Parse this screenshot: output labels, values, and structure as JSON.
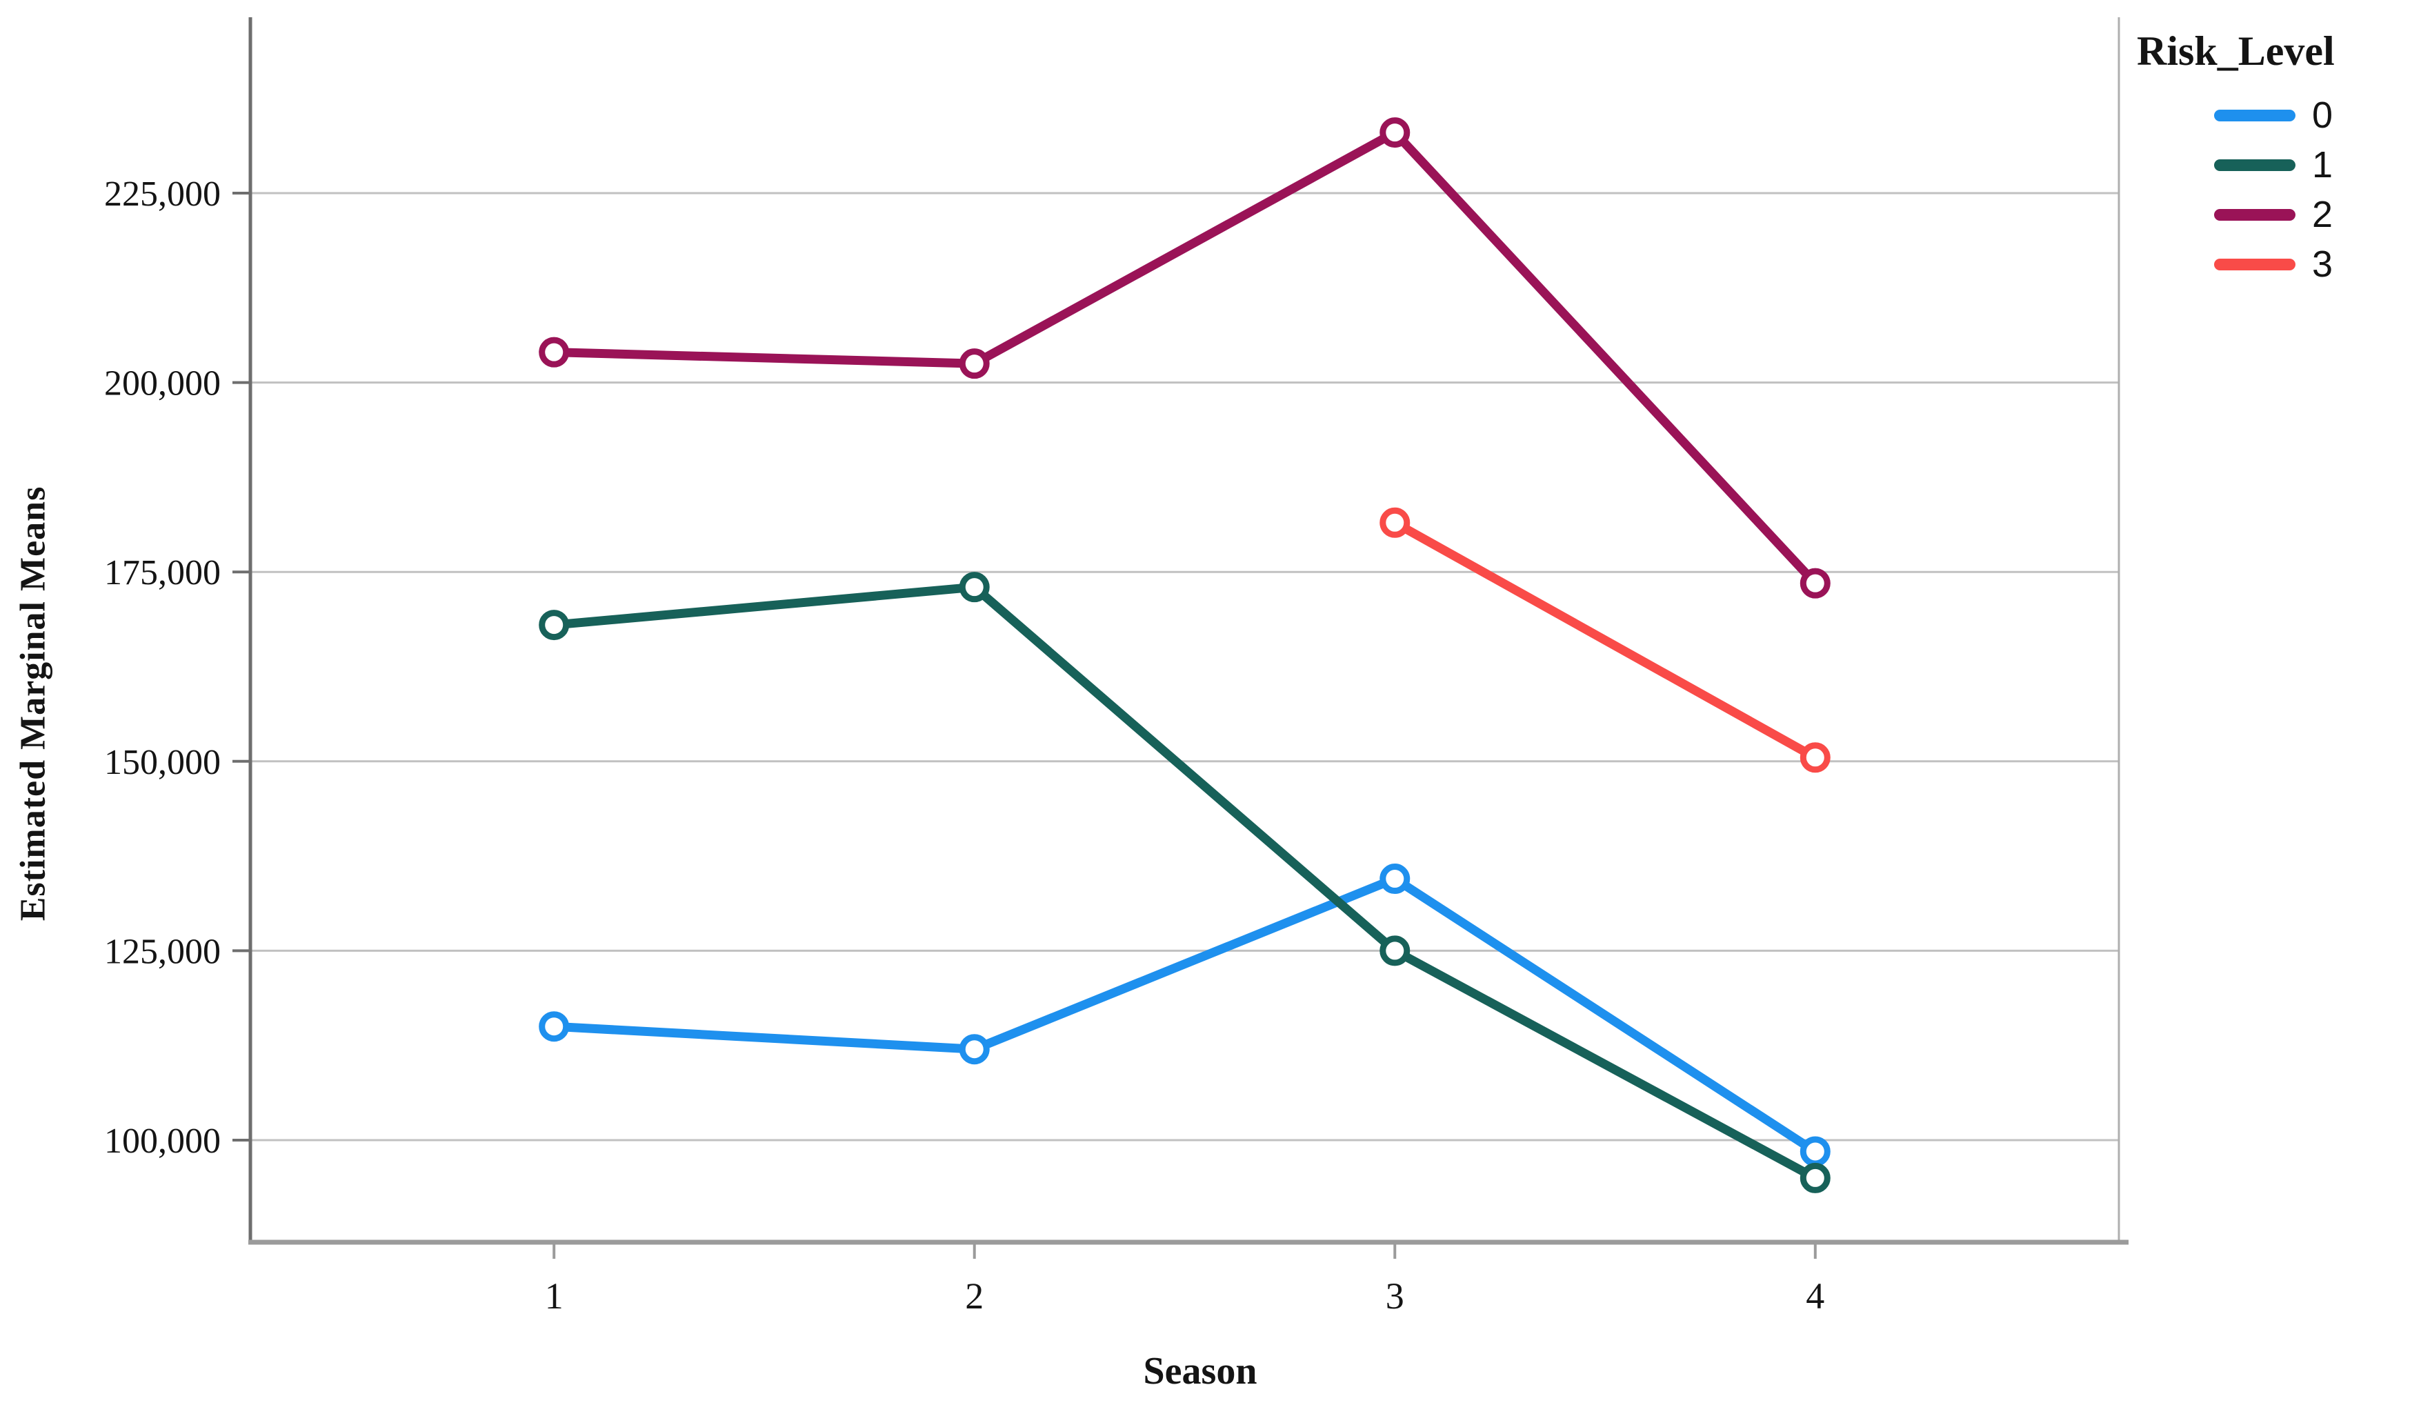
{
  "chart_data": {
    "type": "line",
    "categories": [
      "1",
      "2",
      "3",
      "4"
    ],
    "series": [
      {
        "name": "0",
        "color": "#1E90EE",
        "values": [
          115000,
          112000,
          134500,
          98500
        ]
      },
      {
        "name": "1",
        "color": "#176159",
        "values": [
          168000,
          173000,
          125000,
          95000
        ]
      },
      {
        "name": "2",
        "color": "#9A1357",
        "values": [
          204000,
          202500,
          233000,
          173500
        ]
      },
      {
        "name": "3",
        "color": "#F94B48",
        "values": [
          null,
          null,
          181500,
          150500
        ]
      }
    ],
    "title": "",
    "xlabel": "Season",
    "ylabel": "Estimated Marginal Means",
    "legend_title": "Risk_Level",
    "legend_position": "top-right",
    "grid": true,
    "marker": "open-circle",
    "y_ticks": [
      {
        "value": 100000,
        "label": "100,000"
      },
      {
        "value": 125000,
        "label": "125,000"
      },
      {
        "value": 150000,
        "label": "150,000"
      },
      {
        "value": 175000,
        "label": "175,000"
      },
      {
        "value": 200000,
        "label": "200,000"
      },
      {
        "value": 225000,
        "label": "225,000"
      }
    ],
    "ylim": [
      86500,
      248000
    ]
  },
  "style_colors": {
    "gridline": "#C1C1C1",
    "left_axis": "#6E6E6E",
    "bottom_axis": "#9B9B9B",
    "right_border": "#AFAFAF",
    "tick_text": "#141414"
  }
}
